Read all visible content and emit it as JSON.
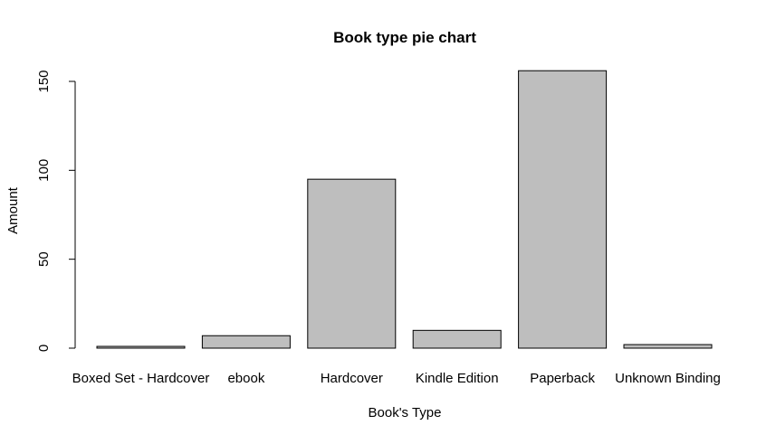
{
  "chart_data": {
    "type": "bar",
    "title": "Book type pie chart",
    "xlabel": "Book's Type",
    "ylabel": "Amount",
    "categories": [
      "Boxed Set - Hardcover",
      "ebook",
      "Hardcover",
      "Kindle Edition",
      "Paperback",
      "Unknown Binding"
    ],
    "values": [
      1,
      7,
      95,
      10,
      156,
      2
    ],
    "yticks": [
      0,
      50,
      100,
      150
    ],
    "ylim": [
      0,
      156
    ],
    "grid": false,
    "colors": {
      "bar_fill": "#bebebe",
      "bar_stroke": "#000000",
      "axis": "#000000",
      "text": "#000000"
    }
  }
}
